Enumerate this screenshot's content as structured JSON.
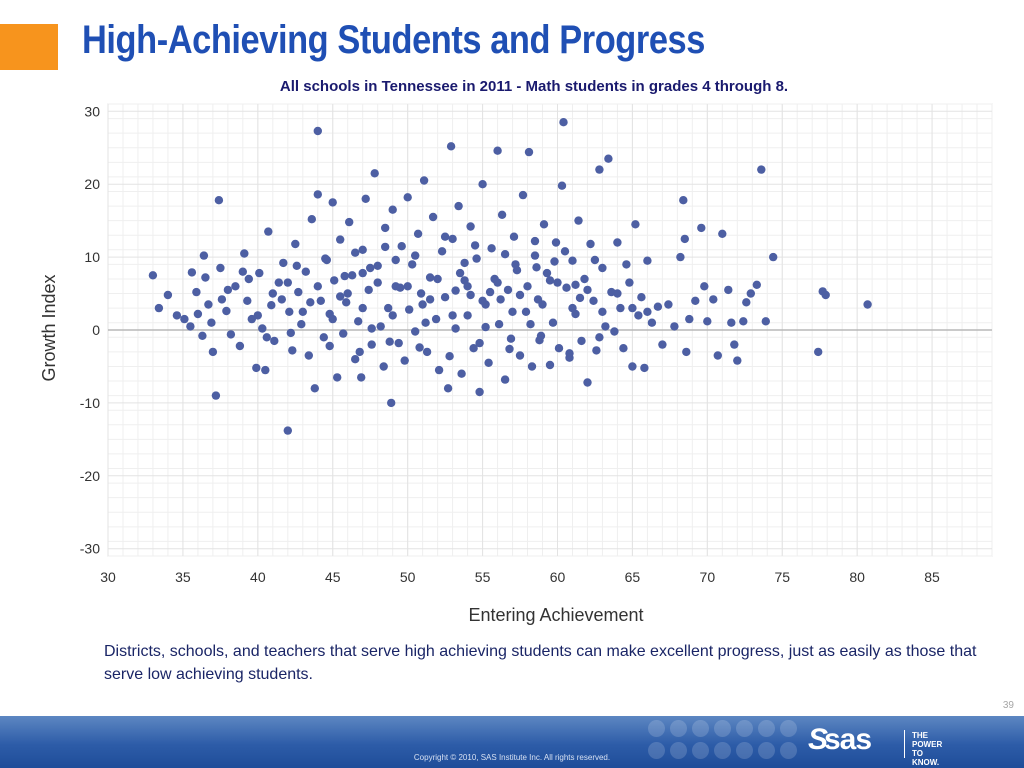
{
  "header": {
    "title": "High-Achieving Students and Progress",
    "subtitle": "All schools in Tennessee in 2011 - Math students in grades 4 through 8."
  },
  "caption": "Districts, schools, and teachers that serve high achieving students can make excellent progress, just as easily as those that serve low achieving students.",
  "slide_number": "39",
  "footer": {
    "copyright": "Copyright © 2010, SAS Institute Inc. All rights reserved.",
    "logo_text": "sas",
    "tagline_1": "THE",
    "tagline_2": "POWER",
    "tagline_3": "TO KNOW."
  },
  "colors": {
    "title": "#1f4fb4",
    "accent": "#f7941d",
    "points": "#4d5fa3",
    "grid": "#e3e3e3",
    "zero_line": "#b8b8b8"
  },
  "chart_data": {
    "type": "scatter",
    "title": "",
    "xlabel": "Entering Achievement",
    "ylabel": "Growth Index",
    "xlim": [
      30,
      89
    ],
    "ylim": [
      -31,
      31
    ],
    "x_ticks": [
      30,
      35,
      40,
      45,
      50,
      55,
      60,
      65,
      70,
      75,
      80,
      85
    ],
    "y_ticks": [
      30,
      20,
      10,
      0,
      -10,
      -20,
      -30
    ],
    "grid": true,
    "reference_line_y": 0,
    "series": [
      {
        "points": [
          [
            33.0,
            7.5
          ],
          [
            33.4,
            3.0
          ],
          [
            34.0,
            4.8
          ],
          [
            34.6,
            2.0
          ],
          [
            35.1,
            1.5
          ],
          [
            35.5,
            0.5
          ],
          [
            35.6,
            7.9
          ],
          [
            35.9,
            5.2
          ],
          [
            36.0,
            2.2
          ],
          [
            36.3,
            -0.8
          ],
          [
            36.4,
            10.2
          ],
          [
            36.5,
            7.2
          ],
          [
            36.7,
            3.5
          ],
          [
            36.9,
            1.0
          ],
          [
            37.0,
            -3.0
          ],
          [
            37.2,
            -9.0
          ],
          [
            37.4,
            17.8
          ],
          [
            37.5,
            8.5
          ],
          [
            37.6,
            4.2
          ],
          [
            37.9,
            2.6
          ],
          [
            38.2,
            -0.6
          ],
          [
            38.5,
            6.0
          ],
          [
            38.8,
            -2.2
          ],
          [
            39.1,
            10.5
          ],
          [
            39.3,
            4.0
          ],
          [
            39.6,
            1.5
          ],
          [
            39.9,
            -5.2
          ],
          [
            40.1,
            7.8
          ],
          [
            40.3,
            0.2
          ],
          [
            40.5,
            -5.5
          ],
          [
            40.7,
            13.5
          ],
          [
            40.9,
            3.4
          ],
          [
            41.1,
            -1.5
          ],
          [
            41.4,
            6.5
          ],
          [
            41.7,
            9.2
          ],
          [
            42.0,
            -13.8
          ],
          [
            42.1,
            2.5
          ],
          [
            42.3,
            -2.8
          ],
          [
            42.5,
            11.8
          ],
          [
            42.7,
            5.2
          ],
          [
            42.9,
            0.8
          ],
          [
            43.2,
            8.0
          ],
          [
            43.4,
            -3.5
          ],
          [
            43.6,
            15.2
          ],
          [
            43.8,
            -8.0
          ],
          [
            44.0,
            27.3
          ],
          [
            44.0,
            18.6
          ],
          [
            44.2,
            4.0
          ],
          [
            44.4,
            -1.0
          ],
          [
            44.6,
            9.6
          ],
          [
            44.8,
            2.2
          ],
          [
            45.0,
            17.5
          ],
          [
            45.1,
            6.8
          ],
          [
            45.3,
            -6.5
          ],
          [
            45.5,
            12.4
          ],
          [
            45.7,
            -0.5
          ],
          [
            45.9,
            3.8
          ],
          [
            46.1,
            14.8
          ],
          [
            46.3,
            7.5
          ],
          [
            46.5,
            -4.0
          ],
          [
            46.7,
            1.2
          ],
          [
            46.9,
            -6.5
          ],
          [
            47.0,
            11.0
          ],
          [
            47.2,
            18.0
          ],
          [
            47.4,
            5.5
          ],
          [
            47.6,
            -2.0
          ],
          [
            47.8,
            21.5
          ],
          [
            48.0,
            8.8
          ],
          [
            48.2,
            0.5
          ],
          [
            48.4,
            -5.0
          ],
          [
            48.5,
            14.0
          ],
          [
            48.7,
            3.0
          ],
          [
            48.9,
            -10.0
          ],
          [
            49.0,
            16.5
          ],
          [
            49.2,
            6.0
          ],
          [
            49.4,
            -1.8
          ],
          [
            49.6,
            11.5
          ],
          [
            49.8,
            -4.2
          ],
          [
            50.0,
            18.2
          ],
          [
            50.1,
            2.8
          ],
          [
            50.3,
            9.0
          ],
          [
            50.5,
            -0.2
          ],
          [
            50.7,
            13.2
          ],
          [
            50.9,
            5.0
          ],
          [
            51.1,
            20.5
          ],
          [
            51.3,
            -3.0
          ],
          [
            51.5,
            7.2
          ],
          [
            51.7,
            15.5
          ],
          [
            51.9,
            1.5
          ],
          [
            52.1,
            -5.5
          ],
          [
            52.3,
            10.8
          ],
          [
            52.5,
            4.5
          ],
          [
            52.7,
            -8.0
          ],
          [
            52.9,
            25.2
          ],
          [
            53.0,
            12.5
          ],
          [
            53.2,
            0.2
          ],
          [
            53.4,
            17.0
          ],
          [
            53.6,
            -6.0
          ],
          [
            53.8,
            6.8
          ],
          [
            54.0,
            2.0
          ],
          [
            54.2,
            14.2
          ],
          [
            54.4,
            -2.5
          ],
          [
            54.6,
            9.8
          ],
          [
            54.8,
            -8.5
          ],
          [
            55.0,
            20.0
          ],
          [
            55.2,
            3.5
          ],
          [
            55.4,
            -4.5
          ],
          [
            55.6,
            11.2
          ],
          [
            55.8,
            7.0
          ],
          [
            56.0,
            24.6
          ],
          [
            56.1,
            0.8
          ],
          [
            56.3,
            15.8
          ],
          [
            56.5,
            -6.8
          ],
          [
            56.7,
            5.5
          ],
          [
            56.9,
            -1.2
          ],
          [
            57.1,
            12.8
          ],
          [
            57.3,
            8.2
          ],
          [
            57.5,
            -3.5
          ],
          [
            57.7,
            18.5
          ],
          [
            57.9,
            2.5
          ],
          [
            58.1,
            24.4
          ],
          [
            58.3,
            -5.0
          ],
          [
            58.5,
            10.2
          ],
          [
            58.7,
            4.2
          ],
          [
            58.9,
            -0.8
          ],
          [
            59.1,
            14.5
          ],
          [
            59.3,
            7.8
          ],
          [
            59.5,
            -4.8
          ],
          [
            59.7,
            1.0
          ],
          [
            59.9,
            12.0
          ],
          [
            60.1,
            -2.5
          ],
          [
            60.3,
            19.8
          ],
          [
            60.4,
            28.5
          ],
          [
            60.6,
            5.8
          ],
          [
            60.8,
            -3.8
          ],
          [
            61.0,
            9.5
          ],
          [
            61.2,
            2.2
          ],
          [
            61.4,
            15.0
          ],
          [
            61.6,
            -1.5
          ],
          [
            61.8,
            7.0
          ],
          [
            62.0,
            -7.2
          ],
          [
            62.2,
            11.8
          ],
          [
            62.4,
            4.0
          ],
          [
            62.6,
            -2.8
          ],
          [
            62.8,
            22.0
          ],
          [
            63.0,
            8.5
          ],
          [
            63.2,
            0.5
          ],
          [
            63.4,
            23.5
          ],
          [
            63.6,
            5.2
          ],
          [
            63.8,
            -0.2
          ],
          [
            64.0,
            12.0
          ],
          [
            64.2,
            3.0
          ],
          [
            64.4,
            -2.5
          ],
          [
            64.6,
            9.0
          ],
          [
            64.8,
            6.5
          ],
          [
            65.0,
            -5.0
          ],
          [
            65.2,
            14.5
          ],
          [
            65.4,
            2.0
          ],
          [
            65.6,
            4.5
          ],
          [
            65.8,
            -5.2
          ],
          [
            66.0,
            9.5
          ],
          [
            66.3,
            1.0
          ],
          [
            66.7,
            3.2
          ],
          [
            67.0,
            -2.0
          ],
          [
            67.4,
            3.5
          ],
          [
            67.8,
            0.5
          ],
          [
            68.2,
            10.0
          ],
          [
            68.4,
            17.8
          ],
          [
            68.5,
            12.5
          ],
          [
            68.6,
            -3.0
          ],
          [
            68.8,
            1.5
          ],
          [
            69.2,
            4.0
          ],
          [
            69.6,
            14.0
          ],
          [
            69.8,
            6.0
          ],
          [
            70.0,
            1.2
          ],
          [
            70.4,
            4.2
          ],
          [
            70.7,
            -3.5
          ],
          [
            71.0,
            13.2
          ],
          [
            71.4,
            5.5
          ],
          [
            71.6,
            1.0
          ],
          [
            71.8,
            -2.0
          ],
          [
            72.0,
            -4.2
          ],
          [
            72.4,
            1.2
          ],
          [
            72.6,
            3.8
          ],
          [
            72.9,
            5.0
          ],
          [
            73.3,
            6.2
          ],
          [
            73.6,
            22.0
          ],
          [
            73.9,
            1.2
          ],
          [
            74.4,
            10.0
          ],
          [
            77.4,
            -3.0
          ],
          [
            77.7,
            5.3
          ],
          [
            77.9,
            4.8
          ],
          [
            80.7,
            3.5
          ],
          [
            38.0,
            5.5
          ],
          [
            39.0,
            8.0
          ],
          [
            40.0,
            2.0
          ],
          [
            41.0,
            5.0
          ],
          [
            42.0,
            6.5
          ],
          [
            43.0,
            2.5
          ],
          [
            44.0,
            6.0
          ],
          [
            45.0,
            1.5
          ],
          [
            46.0,
            5.0
          ],
          [
            47.0,
            3.0
          ],
          [
            48.0,
            6.5
          ],
          [
            49.0,
            2.0
          ],
          [
            50.0,
            6.0
          ],
          [
            51.0,
            3.5
          ],
          [
            52.0,
            7.0
          ],
          [
            53.0,
            2.0
          ],
          [
            54.0,
            6.0
          ],
          [
            55.0,
            4.0
          ],
          [
            56.0,
            6.5
          ],
          [
            57.0,
            2.5
          ],
          [
            58.0,
            6.0
          ],
          [
            59.0,
            3.5
          ],
          [
            60.0,
            6.5
          ],
          [
            61.0,
            3.0
          ],
          [
            62.0,
            5.5
          ],
          [
            63.0,
            2.5
          ],
          [
            64.0,
            5.0
          ],
          [
            65.0,
            3.0
          ],
          [
            66.0,
            2.5
          ],
          [
            43.5,
            3.8
          ],
          [
            45.5,
            4.6
          ],
          [
            47.5,
            8.5
          ],
          [
            49.5,
            5.8
          ],
          [
            51.5,
            4.2
          ],
          [
            53.5,
            7.8
          ],
          [
            55.5,
            5.2
          ],
          [
            57.5,
            4.8
          ],
          [
            59.5,
            6.8
          ],
          [
            61.5,
            4.4
          ],
          [
            44.5,
            9.8
          ],
          [
            46.5,
            10.6
          ],
          [
            48.5,
            11.4
          ],
          [
            50.5,
            10.2
          ],
          [
            52.5,
            12.8
          ],
          [
            54.5,
            11.6
          ],
          [
            56.5,
            10.4
          ],
          [
            58.5,
            12.2
          ],
          [
            60.5,
            10.8
          ],
          [
            62.5,
            9.6
          ],
          [
            44.8,
            -2.2
          ],
          [
            46.8,
            -3.0
          ],
          [
            48.8,
            -1.6
          ],
          [
            50.8,
            -2.4
          ],
          [
            52.8,
            -3.6
          ],
          [
            54.8,
            -1.8
          ],
          [
            56.8,
            -2.6
          ],
          [
            58.8,
            -1.4
          ],
          [
            60.8,
            -3.2
          ],
          [
            62.8,
            -1.0
          ],
          [
            41.6,
            4.2
          ],
          [
            42.6,
            8.8
          ],
          [
            51.2,
            1.0
          ],
          [
            53.8,
            9.2
          ],
          [
            55.2,
            0.4
          ],
          [
            57.2,
            9.0
          ],
          [
            58.2,
            0.8
          ],
          [
            59.8,
            9.4
          ],
          [
            47.6,
            0.2
          ],
          [
            49.2,
            9.6
          ],
          [
            39.4,
            7.0
          ],
          [
            40.6,
            -1.0
          ],
          [
            42.2,
            -0.4
          ],
          [
            45.8,
            7.4
          ],
          [
            47.0,
            7.8
          ],
          [
            53.2,
            5.4
          ],
          [
            54.2,
            4.8
          ],
          [
            56.2,
            4.2
          ],
          [
            58.6,
            8.6
          ],
          [
            61.2,
            6.2
          ]
        ]
      }
    ]
  }
}
